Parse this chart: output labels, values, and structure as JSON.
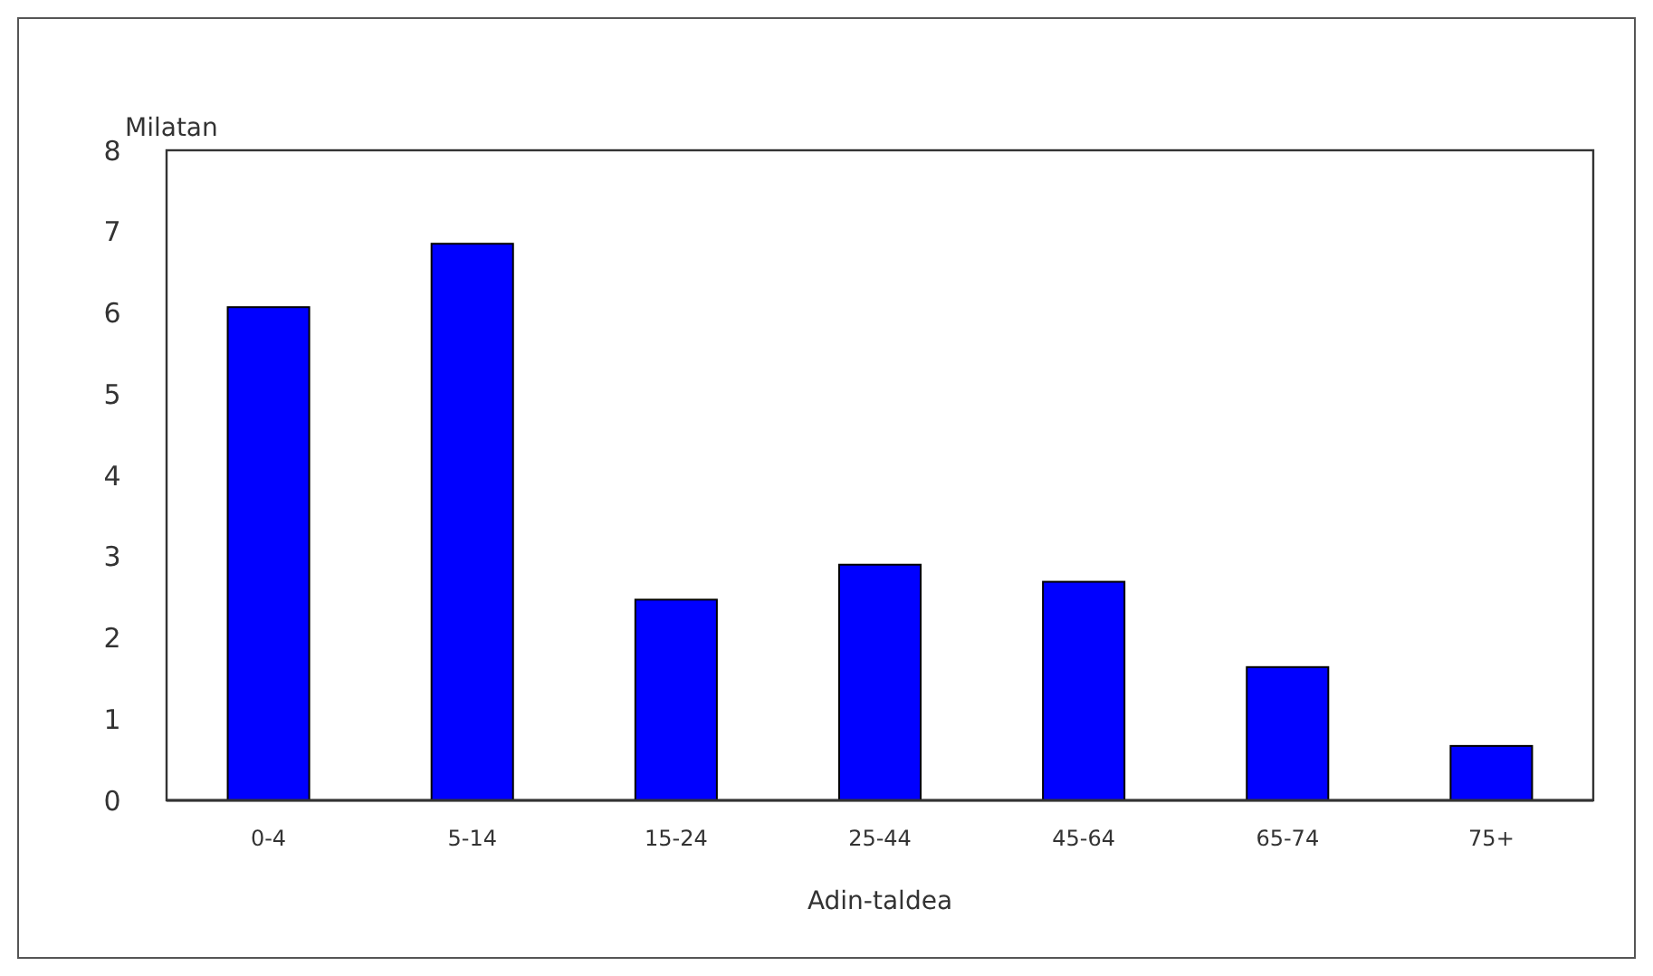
{
  "chart_data": {
    "type": "bar",
    "ylabel": "Milatan",
    "xlabel": "Adin-taldea",
    "categories": [
      "0-4",
      "5-14",
      "15-24",
      "25-44",
      "45-64",
      "65-74",
      "75+"
    ],
    "values": [
      6.07,
      6.85,
      2.47,
      2.9,
      2.69,
      1.64,
      0.67
    ],
    "color": "#0000ff",
    "ylim": [
      0,
      8
    ],
    "yticks": [
      0,
      1,
      2,
      3,
      4,
      5,
      6,
      7,
      8
    ],
    "grid": false
  }
}
